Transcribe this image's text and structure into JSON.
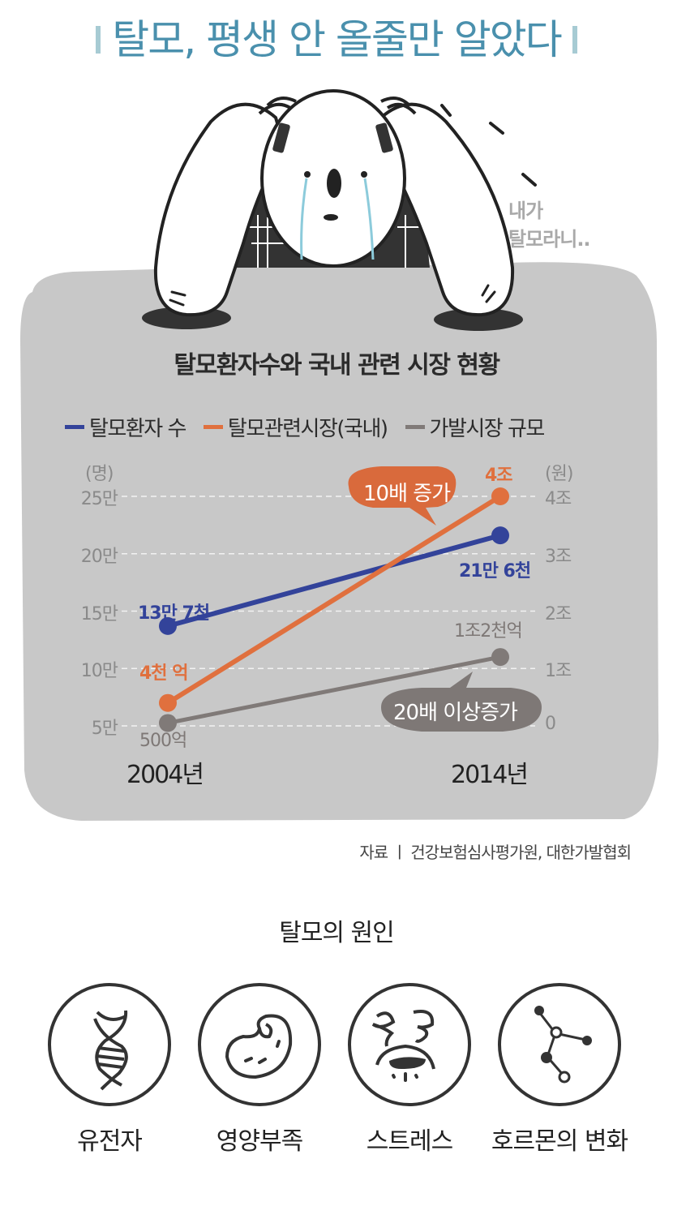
{
  "title": "탈모, 평생 안 올줄만 알았다",
  "speech_bubble": [
    "내가",
    "탈모라니.."
  ],
  "chart_data": {
    "type": "line",
    "title": "탈모환자수와 국내 관련 시장 현황",
    "categories": [
      "2004년",
      "2014년"
    ],
    "left_axis": {
      "unit": "(명)",
      "ticks": [
        "5만",
        "10만",
        "15만",
        "20만",
        "25만"
      ],
      "range": [
        50000,
        250000
      ]
    },
    "right_axis": {
      "unit": "(원)",
      "ticks": [
        "0",
        "1조",
        "2조",
        "3조",
        "4조"
      ],
      "range": [
        0,
        4000000000000
      ]
    },
    "series": [
      {
        "name": "탈모환자 수",
        "axis": "left",
        "color": "#33439a",
        "values": [
          137000,
          216000
        ],
        "labels": [
          "13만 7천",
          "21만 6천"
        ]
      },
      {
        "name": "탈모관련시장(국내)",
        "axis": "right",
        "color": "#e0703e",
        "values": [
          400000000000,
          4000000000000
        ],
        "labels": [
          "4천 억",
          "4조"
        ]
      },
      {
        "name": "가발시장 규모",
        "axis": "right",
        "color": "#807a78",
        "values": [
          50000000000,
          1200000000000
        ],
        "labels": [
          "500억",
          "1조2천억"
        ]
      }
    ],
    "legend": [
      "탈모환자 수",
      "탈모관련시장(국내)",
      "가발시장 규모"
    ],
    "legend_position": "top",
    "grid": true,
    "annotations": [
      {
        "text": "10배 증가",
        "color": "#d96a3c"
      },
      {
        "text": "20배 이상증가",
        "color": "#7e7876"
      }
    ]
  },
  "source": "자료 ㅣ 건강보험심사평가원, 대한가발협회",
  "causes": {
    "title": "탈모의 원인",
    "items": [
      {
        "label": "유전자",
        "icon": "dna-icon"
      },
      {
        "label": "영양부족",
        "icon": "bean-icon"
      },
      {
        "label": "스트레스",
        "icon": "stressed-face-icon"
      },
      {
        "label": "호르몬의 변화",
        "icon": "molecule-icon"
      }
    ]
  }
}
